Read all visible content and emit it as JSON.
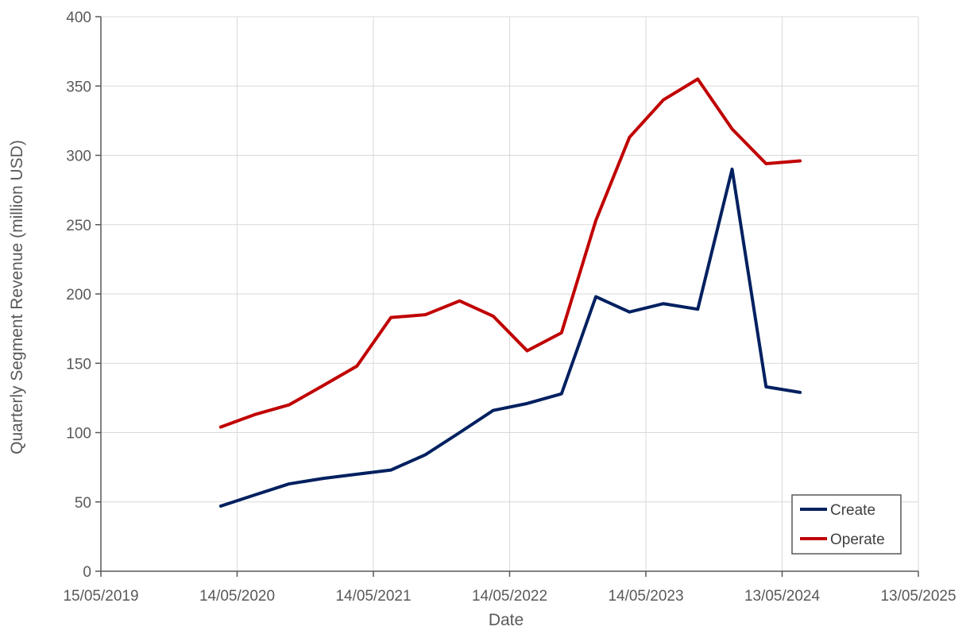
{
  "chart_data": {
    "type": "line",
    "title": "",
    "xlabel": "Date",
    "ylabel": "Quarterly Segment Revenue (million USD)",
    "x_axis_type": "date",
    "xlim": [
      "2019-05-15",
      "2025-05-13"
    ],
    "ylim": [
      0,
      400
    ],
    "x_ticks": [
      {
        "date": "2019-05-15",
        "label": "15/05/2019"
      },
      {
        "date": "2020-05-14",
        "label": "14/05/2020"
      },
      {
        "date": "2021-05-14",
        "label": "14/05/2021"
      },
      {
        "date": "2022-05-14",
        "label": "14/05/2022"
      },
      {
        "date": "2023-05-14",
        "label": "14/05/2023"
      },
      {
        "date": "2024-05-13",
        "label": "13/05/2024"
      },
      {
        "date": "2025-05-13",
        "label": "13/05/2025"
      }
    ],
    "y_ticks": [
      0,
      50,
      100,
      150,
      200,
      250,
      300,
      350,
      400
    ],
    "y_tick_labels": [
      "0",
      "50",
      "100",
      "150",
      "200",
      "250",
      "300",
      "350",
      "400"
    ],
    "grid": true,
    "legend_position": "bottom-right",
    "x": [
      "2020-03-31",
      "2020-06-30",
      "2020-09-30",
      "2020-12-31",
      "2021-03-31",
      "2021-06-30",
      "2021-09-30",
      "2021-12-31",
      "2022-03-31",
      "2022-06-30",
      "2022-09-30",
      "2022-12-31",
      "2023-03-31",
      "2023-06-30",
      "2023-09-30",
      "2023-12-31",
      "2024-03-31",
      "2024-06-30"
    ],
    "series": [
      {
        "name": "Create",
        "color": "#002060",
        "values": [
          47,
          55,
          63,
          67,
          70,
          73,
          84,
          100,
          116,
          121,
          128,
          198,
          187,
          193,
          189,
          290,
          133,
          129
        ]
      },
      {
        "name": "Operate",
        "color": "#C00000",
        "values": [
          104,
          113,
          120,
          134,
          148,
          183,
          185,
          195,
          184,
          159,
          172,
          253,
          313,
          340,
          355,
          319,
          294,
          296
        ]
      }
    ]
  }
}
